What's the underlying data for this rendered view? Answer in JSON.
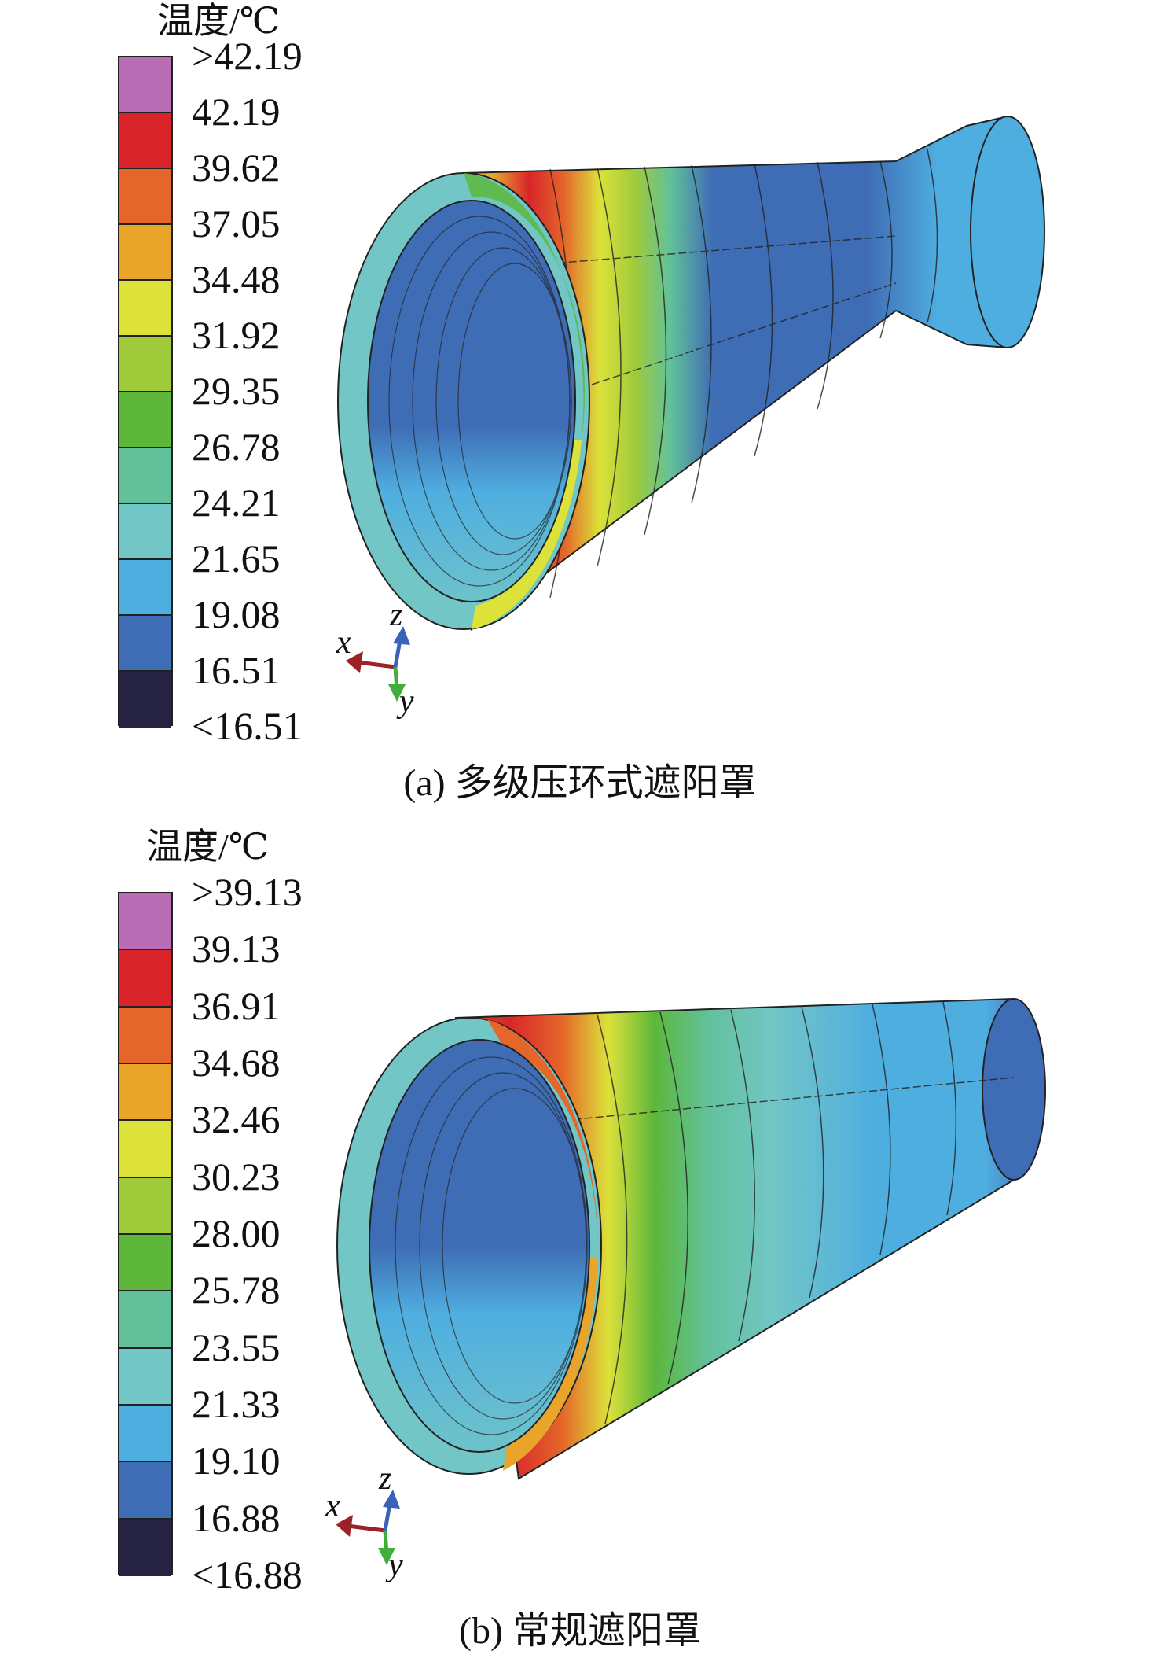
{
  "panels": [
    {
      "legend_title": "温度/℃",
      "labels": [
        ">42.19",
        "42.19",
        "39.62",
        "37.05",
        "34.48",
        "31.92",
        "29.35",
        "26.78",
        "24.21",
        "21.65",
        "19.08",
        "16.51",
        "<16.51"
      ],
      "colors": [
        "#b86db5",
        "#d9252a",
        "#e4662a",
        "#e8a52a",
        "#dce23a",
        "#9fcb3a",
        "#5cb73a",
        "#62c19a",
        "#72c6c6",
        "#4faee0",
        "#3f6db5",
        "#262342"
      ],
      "caption": "(a) 多级压环式遮阳罩",
      "axes": {
        "x": "x",
        "y": "y",
        "z": "z"
      }
    },
    {
      "legend_title": "温度/℃",
      "labels": [
        ">39.13",
        "39.13",
        "36.91",
        "34.68",
        "32.46",
        "30.23",
        "28.00",
        "25.78",
        "23.55",
        "21.33",
        "19.10",
        "16.88",
        "<16.88"
      ],
      "colors": [
        "#b86db5",
        "#d9252a",
        "#e4662a",
        "#e8a52a",
        "#dce23a",
        "#9fcb3a",
        "#5cb73a",
        "#62c19a",
        "#72c6c6",
        "#4faee0",
        "#3f6db5",
        "#262342"
      ],
      "caption": "(b) 常规遮阳罩",
      "axes": {
        "x": "x",
        "y": "y",
        "z": "z"
      }
    }
  ]
}
